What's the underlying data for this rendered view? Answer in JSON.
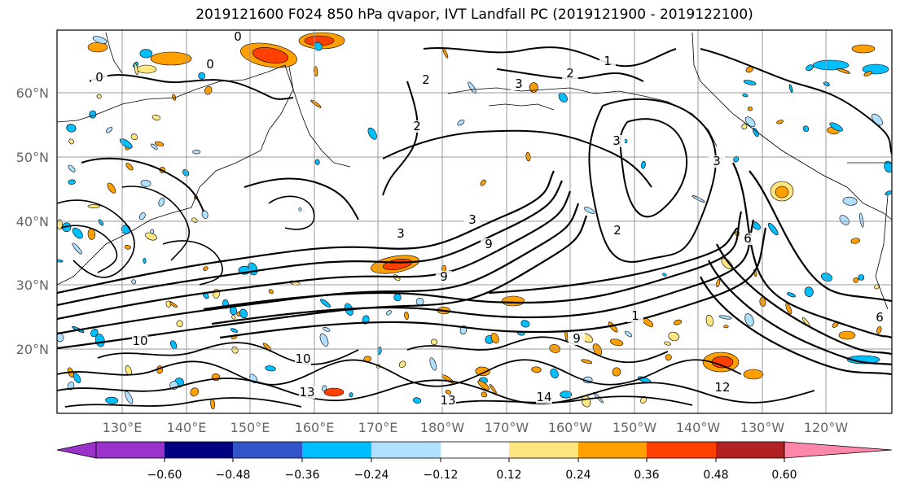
{
  "title": "2019121600 F024 850 hPa qvapor, IVT Landfall PC (2019121900 - 2019122100)",
  "map": {
    "lat_labels": [
      "60°N",
      "50°N",
      "40°N",
      "30°N",
      "20°N"
    ],
    "lon_labels": [
      "130°E",
      "140°E",
      "150°E",
      "160°E",
      "170°E",
      "180°W",
      "170°W",
      "160°W",
      "150°W",
      "140°W",
      "130°W",
      "120°W"
    ],
    "contour_labels": [
      {
        "text": "0"
      },
      {
        "text": "0"
      },
      {
        "text": "0"
      },
      {
        "text": "1"
      },
      {
        "text": "2"
      },
      {
        "text": "2"
      },
      {
        "text": "2"
      },
      {
        "text": "3"
      },
      {
        "text": "3"
      },
      {
        "text": "3"
      },
      {
        "text": "3"
      },
      {
        "text": "2"
      },
      {
        "text": "6"
      },
      {
        "text": "9"
      },
      {
        "text": "9"
      },
      {
        "text": "10"
      },
      {
        "text": "10"
      },
      {
        "text": "12"
      },
      {
        "text": "13"
      },
      {
        "text": "13"
      },
      {
        "text": "14"
      },
      {
        "text": "6"
      },
      {
        "text": "9"
      },
      {
        "text": "1"
      },
      {
        "text": "3"
      }
    ]
  },
  "colorbar": {
    "colors": [
      "#9933cc",
      "#000080",
      "#3355cc",
      "#00bfff",
      "#b0e0ff",
      "#ffffff",
      "#ffe680",
      "#ffa000",
      "#ff4000",
      "#b22222",
      "#ff88aa"
    ],
    "tick_labels": [
      "−0.60",
      "−0.48",
      "−0.36",
      "−0.24",
      "−0.12",
      "0.12",
      "0.24",
      "0.36",
      "0.48",
      "0.60"
    ]
  },
  "fill_colors": {
    "pos1": "#ffe680",
    "pos2": "#ffa000",
    "pos3": "#ff4000",
    "neg1": "#b0e0ff",
    "neg2": "#00bfff"
  }
}
